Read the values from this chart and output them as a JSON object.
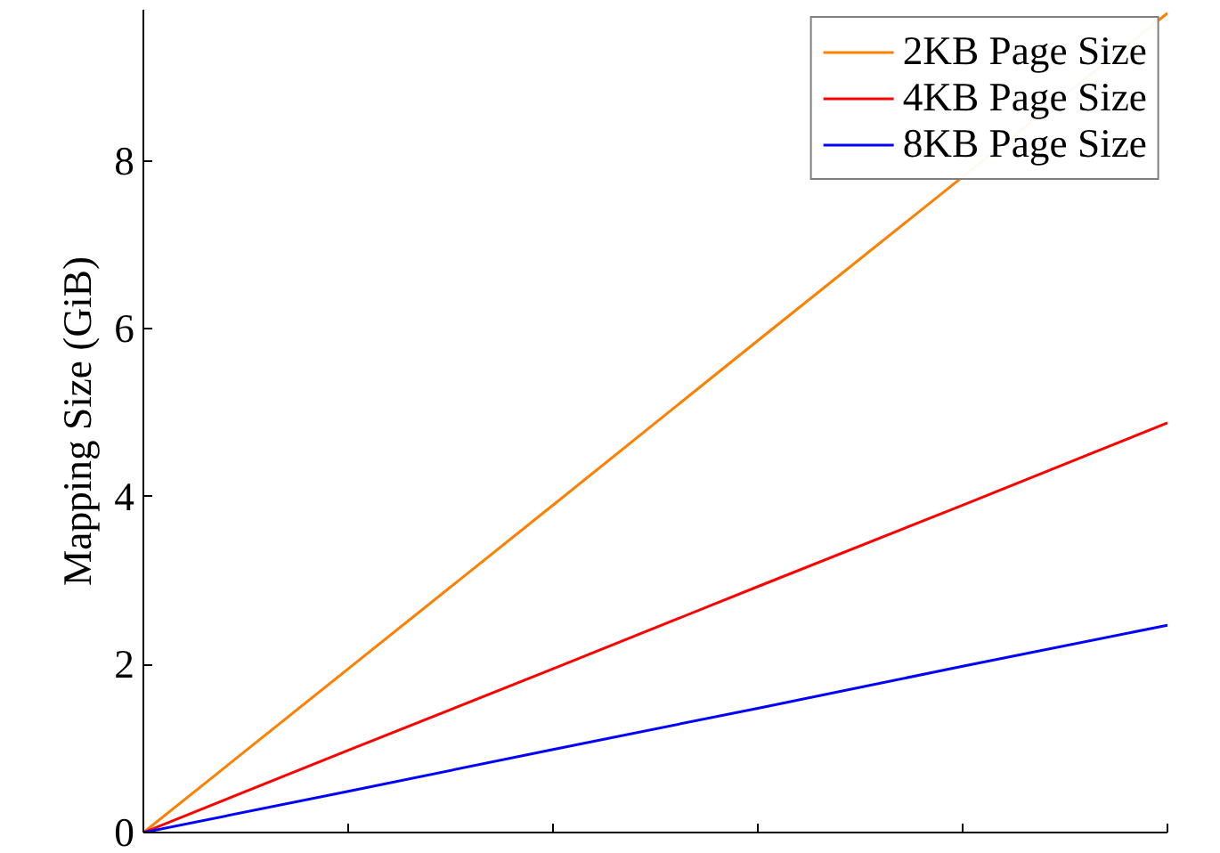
{
  "chart_data": {
    "type": "line",
    "ylabel": "Mapping Size (GiB)",
    "categories": [
      null,
      null,
      null,
      null,
      null,
      null
    ],
    "series": [
      {
        "name": "2KB Page Size",
        "color": "#ff8000",
        "values": [
          0,
          1.95,
          3.9,
          5.86,
          7.81,
          9.76
        ]
      },
      {
        "name": "4KB Page Size",
        "color": "#ff0000",
        "values": [
          0,
          0.98,
          1.95,
          2.93,
          3.9,
          4.88
        ]
      },
      {
        "name": "8KB Page Size",
        "color": "#0000ff",
        "values": [
          0,
          0.49,
          0.99,
          1.48,
          1.98,
          2.47
        ]
      }
    ],
    "ylim": [
      0,
      9.8
    ],
    "yticks": [
      0,
      2,
      4,
      6,
      8
    ],
    "grid": false,
    "legend": "top right",
    "marker": "none",
    "line_style": "solid"
  }
}
